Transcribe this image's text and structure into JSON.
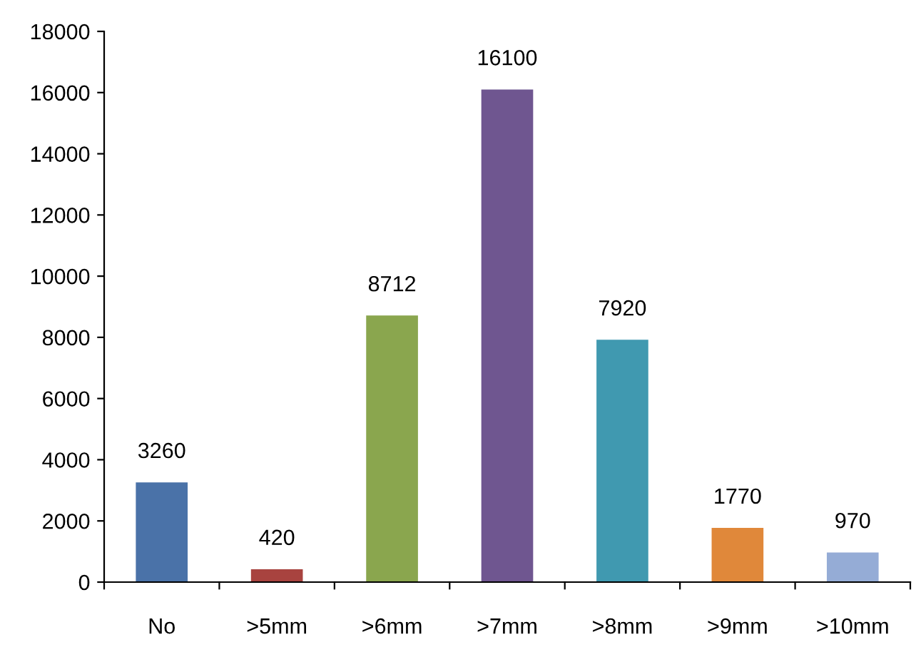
{
  "chart_data": {
    "type": "bar",
    "categories": [
      "No",
      ">5mm",
      ">6mm",
      ">7mm",
      ">8mm",
      ">9mm",
      ">10mm"
    ],
    "values": [
      3260,
      420,
      8712,
      16100,
      7920,
      1770,
      970
    ],
    "colors": [
      "#4a72a8",
      "#a8433f",
      "#8aa64e",
      "#6f5690",
      "#4099b0",
      "#e0883a",
      "#95acd6"
    ],
    "ylim": [
      0,
      18000
    ],
    "yticks": [
      0,
      2000,
      4000,
      6000,
      8000,
      10000,
      12000,
      14000,
      16000,
      18000
    ],
    "data_labels": true,
    "grid": false,
    "legend": false
  }
}
